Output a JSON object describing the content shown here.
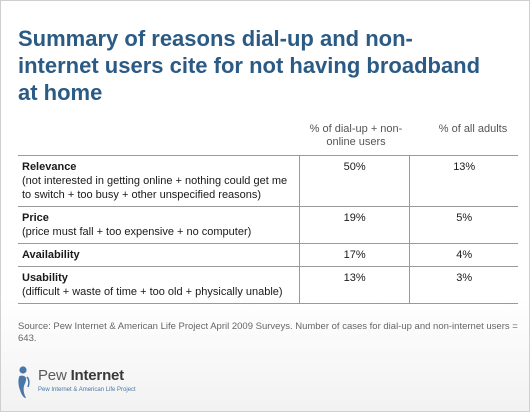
{
  "title": "Summary of reasons dial-up and non-internet users cite for not having broadband at home",
  "columns": {
    "col1": "% of dial-up + non-online users",
    "col2": "% of all adults"
  },
  "rows": [
    {
      "label": "Relevance",
      "desc": "(not interested in getting online + nothing could get me to switch + too busy + other unspecified reasons)",
      "v1": "50%",
      "v2": "13%"
    },
    {
      "label": "Price",
      "desc": "(price must fall + too expensive + no computer)",
      "v1": "19%",
      "v2": "5%"
    },
    {
      "label": "Availability",
      "desc": "",
      "v1": "17%",
      "v2": "4%"
    },
    {
      "label": "Usability",
      "desc": "(difficult + waste of time + too old + physically unable)",
      "v1": "13%",
      "v2": "3%"
    }
  ],
  "source": "Source: Pew Internet & American Life Project April 2009 Surveys. Number of cases for dial-up and non-internet users = 643.",
  "logo": {
    "word_part1": "Pew",
    "word_part2": "Internet",
    "tagline": "Pew Internet & American Life Project",
    "icon": "person-silhouette-icon",
    "color": "#4a76a8"
  },
  "colors": {
    "title": "#2b5b85",
    "rule": "#9a9a9a"
  }
}
